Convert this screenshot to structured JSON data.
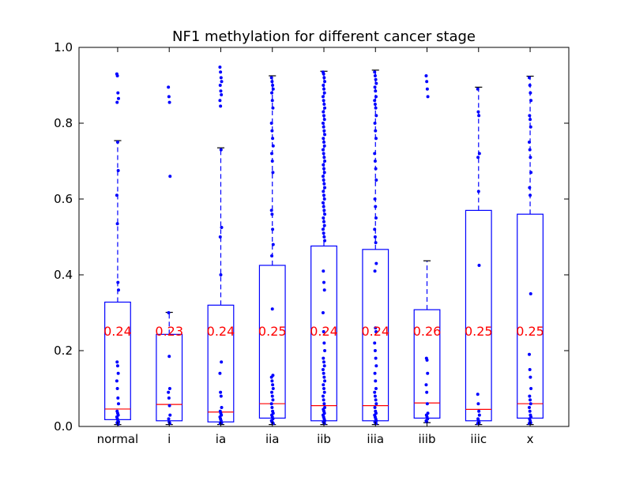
{
  "chart_data": {
    "type": "box",
    "title": "NF1 methylation for different cancer stage",
    "xlabel": "",
    "ylabel": "",
    "ylim": [
      0.0,
      1.0
    ],
    "yticks": [
      "0.0",
      "0.2",
      "0.4",
      "0.6",
      "0.8",
      "1.0"
    ],
    "ytick_values": [
      0.0,
      0.2,
      0.4,
      0.6,
      0.8,
      1.0
    ],
    "grid": false,
    "colors": {
      "box": "#0000ff",
      "median": "#ff0000",
      "mean_label": "#ff0000",
      "points": "#0000ff"
    },
    "categories": [
      "normal",
      "i",
      "ia",
      "iia",
      "iib",
      "iiia",
      "iiib",
      "iiic",
      "x"
    ],
    "boxes": [
      {
        "category": "normal",
        "whisker_low": 0.005,
        "q1": 0.018,
        "median": 0.046,
        "q3": 0.328,
        "whisker_high": 0.754,
        "mean_label": "0.24",
        "points": [
          0.93,
          0.925,
          0.88,
          0.865,
          0.855,
          0.75,
          0.675,
          0.61,
          0.535,
          0.38,
          0.36,
          0.17,
          0.16,
          0.14,
          0.12,
          0.1,
          0.075,
          0.06,
          0.04,
          0.035,
          0.03,
          0.025,
          0.02,
          0.015,
          0.012,
          0.01,
          0.008,
          0.006
        ]
      },
      {
        "category": "i",
        "whisker_low": 0.005,
        "q1": 0.015,
        "median": 0.058,
        "q3": 0.243,
        "whisker_high": 0.301,
        "mean_label": "0.23",
        "points": [
          0.895,
          0.87,
          0.855,
          0.66,
          0.3,
          0.185,
          0.1,
          0.09,
          0.075,
          0.055,
          0.03,
          0.02,
          0.012,
          0.008
        ]
      },
      {
        "category": "ia",
        "whisker_low": 0.005,
        "q1": 0.012,
        "median": 0.038,
        "q3": 0.32,
        "whisker_high": 0.735,
        "mean_label": "0.24",
        "points": [
          0.948,
          0.935,
          0.92,
          0.91,
          0.9,
          0.885,
          0.875,
          0.86,
          0.845,
          0.73,
          0.525,
          0.5,
          0.4,
          0.17,
          0.14,
          0.09,
          0.08,
          0.05,
          0.04,
          0.035,
          0.03,
          0.025,
          0.02,
          0.015,
          0.01,
          0.008
        ]
      },
      {
        "category": "iia",
        "whisker_low": 0.005,
        "q1": 0.022,
        "median": 0.06,
        "q3": 0.425,
        "whisker_high": 0.925,
        "mean_label": "0.25",
        "points": [
          0.92,
          0.91,
          0.9,
          0.89,
          0.88,
          0.86,
          0.84,
          0.8,
          0.78,
          0.76,
          0.74,
          0.72,
          0.7,
          0.67,
          0.57,
          0.56,
          0.52,
          0.48,
          0.45,
          0.31,
          0.135,
          0.13,
          0.12,
          0.11,
          0.1,
          0.09,
          0.08,
          0.07,
          0.06,
          0.05,
          0.04,
          0.035,
          0.03,
          0.025,
          0.02,
          0.015,
          0.012,
          0.01,
          0.008
        ]
      },
      {
        "category": "iib",
        "whisker_low": 0.005,
        "q1": 0.015,
        "median": 0.055,
        "q3": 0.476,
        "whisker_high": 0.937,
        "mean_label": "0.24",
        "points": [
          0.935,
          0.93,
          0.92,
          0.91,
          0.9,
          0.89,
          0.88,
          0.87,
          0.86,
          0.85,
          0.84,
          0.83,
          0.82,
          0.81,
          0.8,
          0.79,
          0.78,
          0.77,
          0.76,
          0.75,
          0.74,
          0.73,
          0.72,
          0.71,
          0.7,
          0.69,
          0.68,
          0.67,
          0.66,
          0.65,
          0.64,
          0.63,
          0.62,
          0.61,
          0.6,
          0.59,
          0.58,
          0.57,
          0.56,
          0.55,
          0.54,
          0.53,
          0.52,
          0.51,
          0.5,
          0.49,
          0.41,
          0.38,
          0.36,
          0.3,
          0.25,
          0.22,
          0.2,
          0.18,
          0.17,
          0.16,
          0.15,
          0.14,
          0.13,
          0.12,
          0.11,
          0.1,
          0.09,
          0.08,
          0.07,
          0.06,
          0.05,
          0.045,
          0.04,
          0.035,
          0.03,
          0.025,
          0.02,
          0.015,
          0.012,
          0.01,
          0.008
        ]
      },
      {
        "category": "iiia",
        "whisker_low": 0.005,
        "q1": 0.015,
        "median": 0.055,
        "q3": 0.467,
        "whisker_high": 0.94,
        "mean_label": "0.24",
        "points": [
          0.935,
          0.925,
          0.915,
          0.905,
          0.895,
          0.885,
          0.87,
          0.86,
          0.85,
          0.84,
          0.82,
          0.8,
          0.78,
          0.76,
          0.72,
          0.7,
          0.68,
          0.65,
          0.6,
          0.58,
          0.55,
          0.52,
          0.5,
          0.485,
          0.43,
          0.41,
          0.26,
          0.25,
          0.22,
          0.2,
          0.18,
          0.16,
          0.14,
          0.12,
          0.1,
          0.09,
          0.08,
          0.07,
          0.06,
          0.05,
          0.04,
          0.035,
          0.03,
          0.025,
          0.02,
          0.015,
          0.012,
          0.01,
          0.008
        ]
      },
      {
        "category": "iiib",
        "whisker_low": 0.01,
        "q1": 0.022,
        "median": 0.062,
        "q3": 0.308,
        "whisker_high": 0.437,
        "mean_label": "0.26",
        "points": [
          0.925,
          0.91,
          0.89,
          0.87,
          0.18,
          0.175,
          0.14,
          0.11,
          0.09,
          0.06,
          0.035,
          0.03,
          0.025,
          0.02,
          0.015,
          0.012
        ]
      },
      {
        "category": "iiic",
        "whisker_low": 0.005,
        "q1": 0.015,
        "median": 0.045,
        "q3": 0.57,
        "whisker_high": 0.895,
        "mean_label": "0.25",
        "points": [
          0.89,
          0.83,
          0.82,
          0.72,
          0.71,
          0.62,
          0.425,
          0.085,
          0.06,
          0.04,
          0.03,
          0.02,
          0.015,
          0.01,
          0.008
        ]
      },
      {
        "category": "x",
        "whisker_low": 0.005,
        "q1": 0.022,
        "median": 0.06,
        "q3": 0.56,
        "whisker_high": 0.924,
        "mean_label": "0.25",
        "points": [
          0.92,
          0.9,
          0.88,
          0.86,
          0.82,
          0.81,
          0.79,
          0.75,
          0.73,
          0.71,
          0.67,
          0.63,
          0.61,
          0.35,
          0.19,
          0.15,
          0.13,
          0.1,
          0.08,
          0.07,
          0.06,
          0.05,
          0.04,
          0.03,
          0.025,
          0.02,
          0.015,
          0.01,
          0.008
        ]
      }
    ]
  }
}
